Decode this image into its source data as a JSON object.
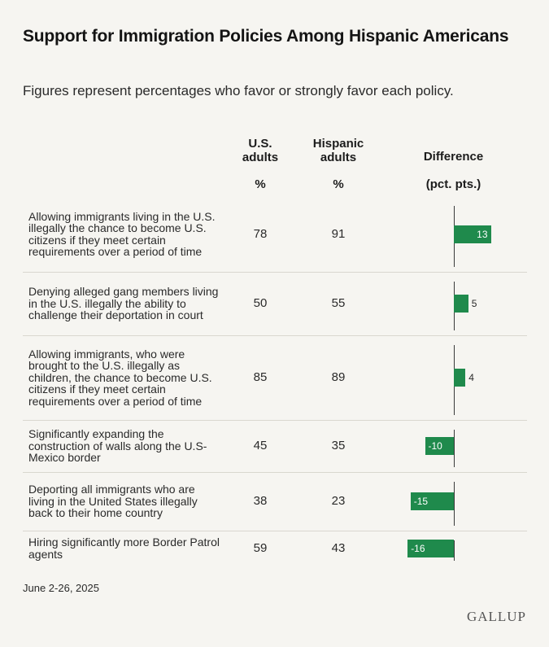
{
  "title": "Support for Immigration Policies Among Hispanic Americans",
  "subtitle": "Figures represent percentages who favor or strongly favor each policy.",
  "columns": {
    "us_adults": "U.S. adults",
    "hispanic_adults": "Hispanic adults",
    "difference": "Difference",
    "difference_unit": "(pct. pts.)",
    "pct_symbol": "%"
  },
  "chart_data": {
    "type": "table",
    "rows": [
      {
        "policy": "Allowing immigrants living in the U.S. illegally the chance to become U.S. citizens if they meet certain requirements over a period of time",
        "us_adults": 78,
        "hispanic_adults": 91,
        "difference": 13
      },
      {
        "policy": "Denying alleged gang members living in the U.S. illegally the ability to challenge their deportation in court",
        "us_adults": 50,
        "hispanic_adults": 55,
        "difference": 5
      },
      {
        "policy": "Allowing immigrants, who were brought to the U.S. illegally as children, the chance to become U.S. citizens if they meet certain requirements over a period of time",
        "us_adults": 85,
        "hispanic_adults": 89,
        "difference": 4
      },
      {
        "policy": "Significantly expanding the construction of walls along the U.S-Mexico border",
        "us_adults": 45,
        "hispanic_adults": 35,
        "difference": -10
      },
      {
        "policy": "Deporting all immigrants who are living in the United States illegally back to their home country",
        "us_adults": 38,
        "hispanic_adults": 23,
        "difference": -15
      },
      {
        "policy": "Hiring significantly more Border Patrol agents",
        "us_adults": 59,
        "hispanic_adults": 43,
        "difference": -16
      }
    ],
    "bar_color": "#1f8a4c"
  },
  "footer": {
    "date": "June 2-26, 2025",
    "brand": "GALLUP"
  }
}
